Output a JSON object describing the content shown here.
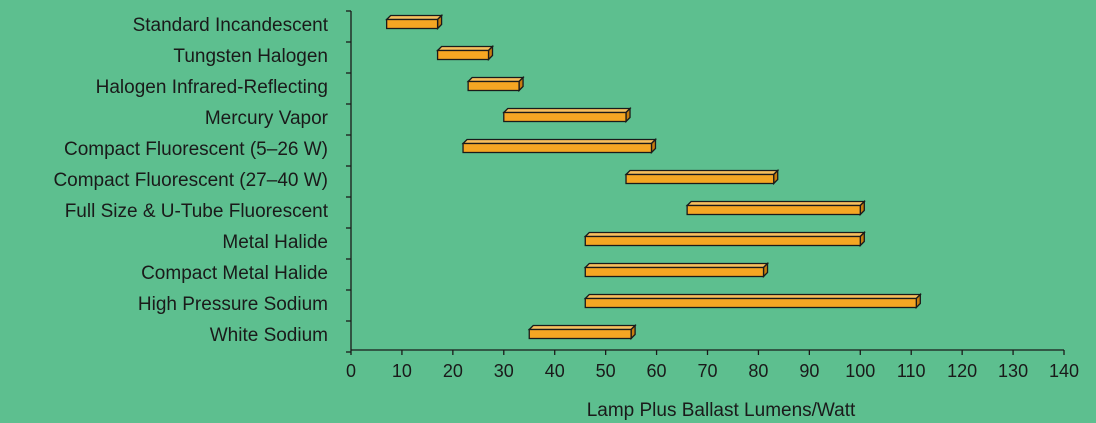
{
  "chart_data": {
    "type": "bar",
    "orientation": "horizontal",
    "style": "floating-range-3d",
    "categories": [
      "Standard Incandescent",
      "Tungsten Halogen",
      "Halogen Infrared-Reflecting",
      "Mercury Vapor",
      "Compact Fluorescent (5–26 W)",
      "Compact Fluorescent (27–40 W)",
      "Full Size & U-Tube Fluorescent",
      "Metal Halide",
      "Compact Metal Halide",
      "High Pressure Sodium",
      "White Sodium"
    ],
    "series": [
      {
        "ranges": [
          [
            7,
            17
          ],
          [
            17,
            27
          ],
          [
            23,
            33
          ],
          [
            30,
            54
          ],
          [
            22,
            59
          ],
          [
            54,
            83
          ],
          [
            66,
            100
          ],
          [
            46,
            100
          ],
          [
            46,
            81
          ],
          [
            46,
            111
          ],
          [
            35,
            55
          ]
        ]
      }
    ],
    "xlabel": "Lamp Plus Ballast Lumens/Watt",
    "xlim": [
      0,
      140
    ],
    "xticks": [
      "0",
      "10",
      "20",
      "30",
      "40",
      "50",
      "60",
      "70",
      "80",
      "90",
      "100",
      "110",
      "120",
      "130",
      "140"
    ],
    "grid": false,
    "colors": {
      "bar": "#f5a623",
      "bar_top": "#f7bf5e",
      "bar_side": "#c77d0e",
      "background": "#5dbf8f"
    }
  }
}
